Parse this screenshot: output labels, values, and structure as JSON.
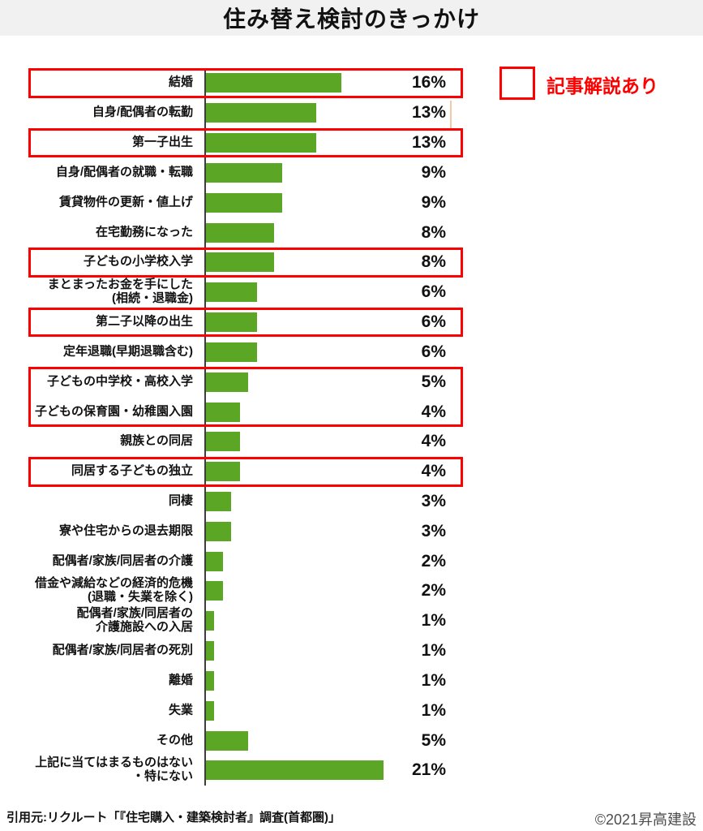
{
  "title": "住み替え検討のきっかけ",
  "legend": {
    "label": "記事解説あり",
    "position": "top-right"
  },
  "footer": {
    "source": "引用元:リクルート「『住宅購入・建築検討者』調査(首都圏)」",
    "copyright": "©2021昇高建設"
  },
  "colors": {
    "bar": "#5ba624",
    "highlight": "#ff0000",
    "axis": "#3d3d3d",
    "title_band": "#f1f1f1",
    "text": "#111111",
    "copyright_text": "#4d4d4d"
  },
  "chart_data": {
    "type": "bar",
    "orientation": "horizontal",
    "title": "住み替え検討のきっかけ",
    "xlabel": "",
    "ylabel": "",
    "unit": "%",
    "xlim": [
      0,
      21
    ],
    "grid": false,
    "legend_position": "top-right",
    "categories": [
      "結婚",
      "自身/配偶者の転勤",
      "第一子出生",
      "自身/配偶者の就職・転職",
      "賃貸物件の更新・値上げ",
      "在宅勤務になった",
      "子どもの小学校入学",
      "まとまったお金を手にした\n(相続・退職金)",
      "第二子以降の出生",
      "定年退職(早期退職含む)",
      "子どもの中学校・高校入学",
      "子どもの保育園・幼稚園入園",
      "親族との同居",
      "同居する子どもの独立",
      "同棲",
      "寮や住宅からの退去期限",
      "配偶者/家族/同居者の介護",
      "借金や減給などの経済的危機\n(退職・失業を除く)",
      "配偶者/家族/同居者の\n介護施設への入居",
      "配偶者/家族/同居者の死別",
      "離婚",
      "失業",
      "その他",
      "上記に当てはまるものはない\n・特にない"
    ],
    "values": [
      16,
      13,
      13,
      9,
      9,
      8,
      8,
      6,
      6,
      6,
      5,
      4,
      4,
      4,
      3,
      3,
      2,
      2,
      1,
      1,
      1,
      1,
      5,
      21
    ],
    "highlight_boxes": [
      {
        "start": 0,
        "end": 0
      },
      {
        "start": 2,
        "end": 2
      },
      {
        "start": 6,
        "end": 6
      },
      {
        "start": 8,
        "end": 8
      },
      {
        "start": 10,
        "end": 11
      },
      {
        "start": 13,
        "end": 13
      }
    ],
    "highlight_meaning": "記事解説あり"
  }
}
